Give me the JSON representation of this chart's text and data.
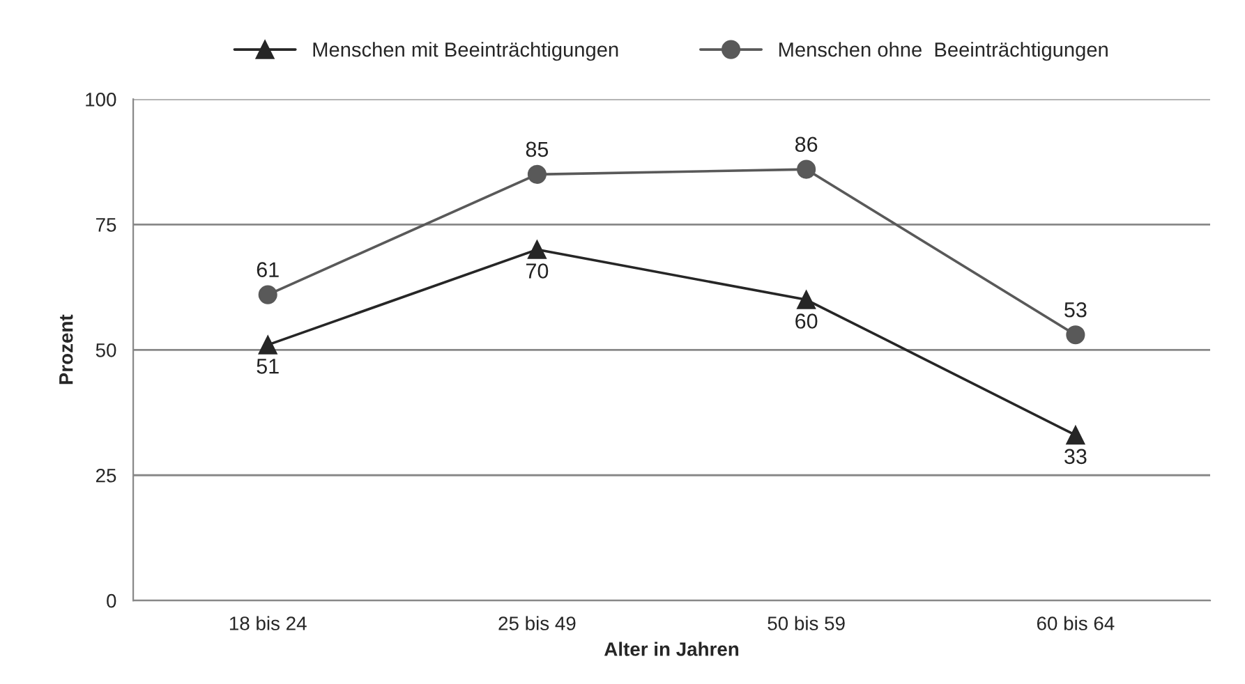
{
  "chart_data": {
    "type": "line",
    "xlabel": "Alter in Jahren",
    "ylabel": "Prozent",
    "categories": [
      "18 bis 24",
      "25 bis 49",
      "50 bis 59",
      "60 bis 64"
    ],
    "series": [
      {
        "name": "Menschen mit Beeinträchtigungen",
        "color": "#262626",
        "marker": "triangle",
        "values": [
          51,
          70,
          60,
          33
        ]
      },
      {
        "name": "Menschen ohne  Beeinträchtigungen",
        "color": "#595959",
        "marker": "circle",
        "values": [
          61,
          85,
          86,
          53
        ]
      }
    ],
    "ylim": [
      0,
      100
    ],
    "yticks": [
      0,
      25,
      50,
      75,
      100
    ],
    "grid": "y",
    "legend": "top",
    "data_labels": true,
    "line_style": "solid"
  }
}
